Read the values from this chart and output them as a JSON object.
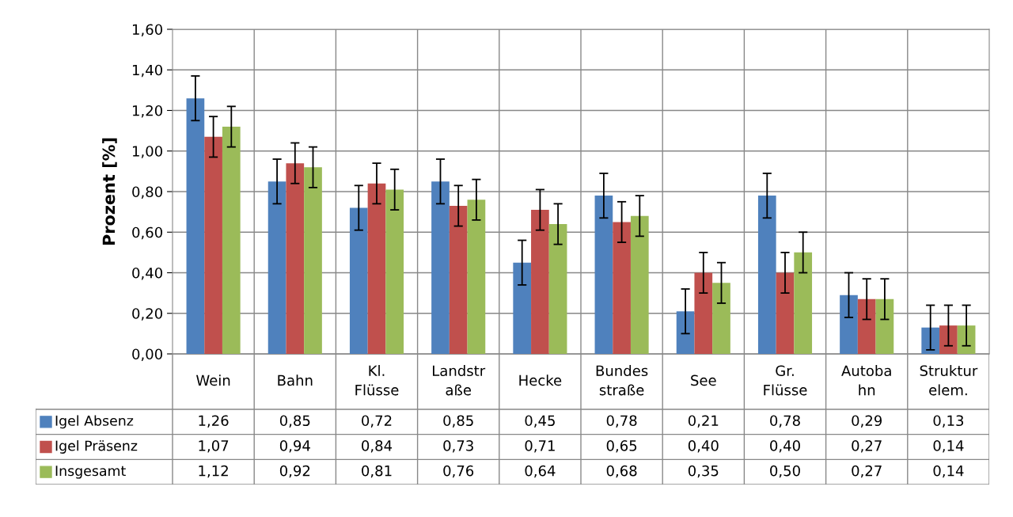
{
  "chart_data": {
    "type": "bar",
    "ylabel": "Prozent [%]",
    "categories": [
      "Wein",
      "Bahn",
      "Kl.\nFlüsse",
      "Landstr\naße",
      "Hecke",
      "Bundes\nstraße",
      "See",
      "Gr.\nFlüsse",
      "Autoba\nhn",
      "Struktur\nelem."
    ],
    "series": [
      {
        "name": "Igel Absenz",
        "color": "#4f81bd",
        "values": [
          1.26,
          0.85,
          0.72,
          0.85,
          0.45,
          0.78,
          0.21,
          0.78,
          0.29,
          0.13
        ],
        "value_labels": [
          "1,26",
          "0,85",
          "0,72",
          "0,85",
          "0,45",
          "0,78",
          "0,21",
          "0,78",
          "0,29",
          "0,13"
        ],
        "errors": [
          0.11,
          0.11,
          0.11,
          0.11,
          0.11,
          0.11,
          0.11,
          0.11,
          0.11,
          0.11
        ]
      },
      {
        "name": "Igel Präsenz",
        "color": "#c0504d",
        "values": [
          1.07,
          0.94,
          0.84,
          0.73,
          0.71,
          0.65,
          0.4,
          0.4,
          0.27,
          0.14
        ],
        "value_labels": [
          "1,07",
          "0,94",
          "0,84",
          "0,73",
          "0,71",
          "0,65",
          "0,40",
          "0,40",
          "0,27",
          "0,14"
        ],
        "errors": [
          0.1,
          0.1,
          0.1,
          0.1,
          0.1,
          0.1,
          0.1,
          0.1,
          0.1,
          0.1
        ]
      },
      {
        "name": "Insgesamt",
        "color": "#9bbb59",
        "values": [
          1.12,
          0.92,
          0.81,
          0.76,
          0.64,
          0.68,
          0.35,
          0.5,
          0.27,
          0.14
        ],
        "value_labels": [
          "1,12",
          "0,92",
          "0,81",
          "0,76",
          "0,64",
          "0,68",
          "0,35",
          "0,50",
          "0,27",
          "0,14"
        ],
        "errors": [
          0.1,
          0.1,
          0.1,
          0.1,
          0.1,
          0.1,
          0.1,
          0.1,
          0.1,
          0.1
        ]
      }
    ],
    "ylim": [
      0,
      1.6
    ],
    "yticks": [
      {
        "value": 0,
        "label": "0,00"
      },
      {
        "value": 0.2,
        "label": "0,20"
      },
      {
        "value": 0.4,
        "label": "0,40"
      },
      {
        "value": 0.6,
        "label": "0,60"
      },
      {
        "value": 0.8,
        "label": "0,80"
      },
      {
        "value": 1.0,
        "label": "1,00"
      },
      {
        "value": 1.2,
        "label": "1,20"
      },
      {
        "value": 1.4,
        "label": "1,40"
      },
      {
        "value": 1.6,
        "label": "1,60"
      }
    ],
    "grid": true,
    "legend": "bottom"
  }
}
